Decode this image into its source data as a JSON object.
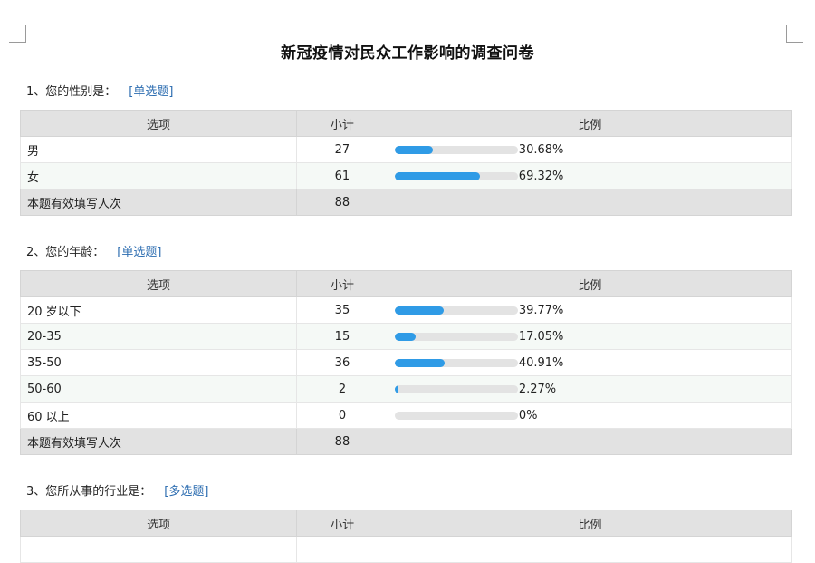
{
  "document": {
    "title": "新冠疫情对民众工作影响的调查问卷"
  },
  "table_headers": {
    "option": "选项",
    "count": "小计",
    "ratio": "比例"
  },
  "questions": [
    {
      "title": "1、您的性别是：",
      "type": "[单选题]",
      "rows": [
        {
          "option": "男",
          "count": "27",
          "percent": "30.68%",
          "fraction": 0.3068
        },
        {
          "option": "女",
          "count": "61",
          "percent": "69.32%",
          "fraction": 0.6932
        }
      ],
      "total": {
        "label": "本题有效填写人次",
        "count": "88"
      }
    },
    {
      "title": "2、您的年龄：",
      "type": "[单选题]",
      "rows": [
        {
          "option": "20 岁以下",
          "count": "35",
          "percent": "39.77%",
          "fraction": 0.3977
        },
        {
          "option": "20-35",
          "count": "15",
          "percent": "17.05%",
          "fraction": 0.1705
        },
        {
          "option": "35-50",
          "count": "36",
          "percent": "40.91%",
          "fraction": 0.4091
        },
        {
          "option": "50-60",
          "count": "2",
          "percent": "2.27%",
          "fraction": 0.0227
        },
        {
          "option": "60 以上",
          "count": "0",
          "percent": "0%",
          "fraction": 0
        }
      ],
      "total": {
        "label": "本题有效填写人次",
        "count": "88"
      }
    },
    {
      "title": "3、您所从事的行业是：",
      "type": "[多选题]",
      "rows": [],
      "total": null
    }
  ],
  "colors": {
    "bar_fill": "#2f9be6",
    "bar_track": "#e3e3e3",
    "header_bg": "#e2e2e2",
    "tag_text": "#2b6cb0"
  }
}
